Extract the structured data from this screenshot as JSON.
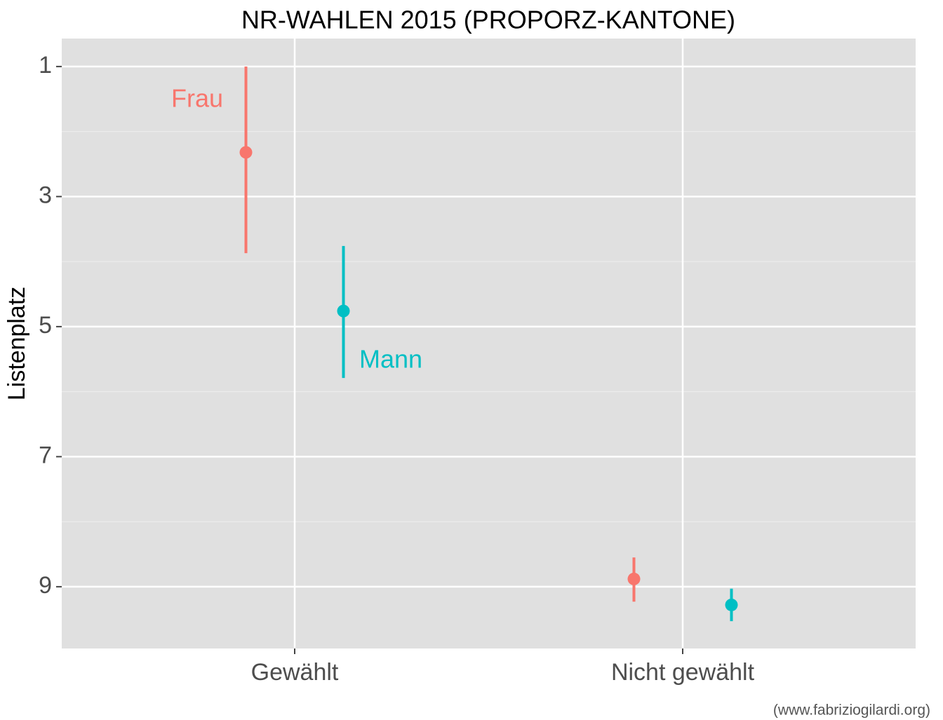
{
  "chart_data": {
    "type": "pointrange",
    "title": "NR-WAHLEN 2015 (PROPORZ-KANTONE)",
    "y_label": "Listenplatz",
    "caption": "(www.fabriziogilardi.org)",
    "categories": [
      "Gewählt",
      "Nicht gewählt"
    ],
    "series": [
      {
        "name": "Frau",
        "color": "#F8766D",
        "values": [
          2.32,
          8.88
        ],
        "lower": [
          1.0,
          8.55
        ],
        "upper": [
          3.87,
          9.23
        ]
      },
      {
        "name": "Mann",
        "color": "#00BFC4",
        "values": [
          4.76,
          9.28
        ],
        "lower": [
          3.76,
          9.03
        ],
        "upper": [
          5.79,
          9.53
        ]
      }
    ],
    "ylim": [
      0.57,
      9.95
    ],
    "y_reversed": true,
    "yticks": [
      1,
      3,
      5,
      7,
      9
    ],
    "yminor_ticks": [
      2,
      4,
      6,
      8
    ],
    "grid": true,
    "panel_color": "#e0e0e0"
  }
}
